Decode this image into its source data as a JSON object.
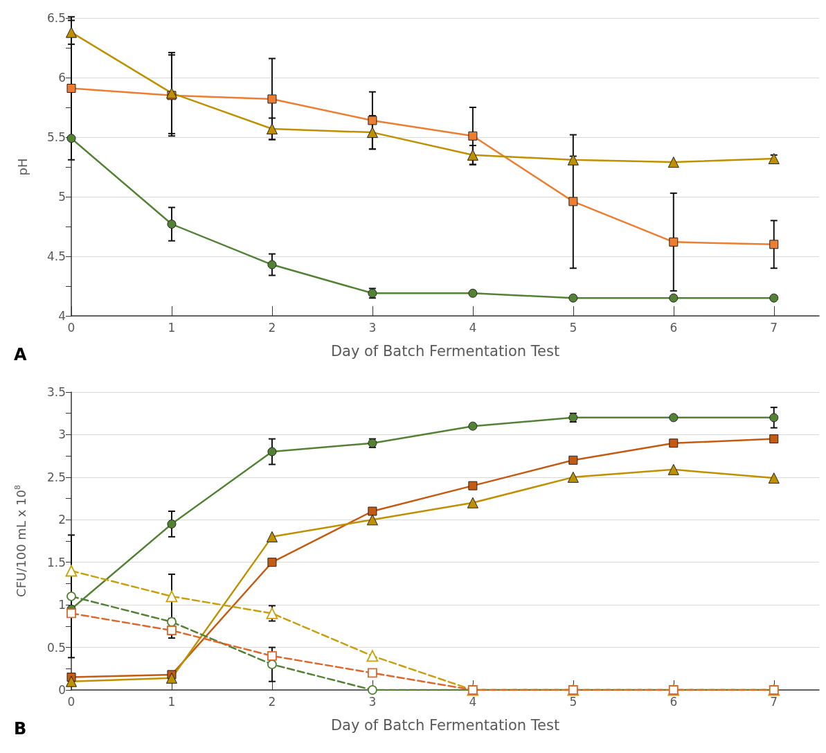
{
  "chart_data": [
    {
      "type": "line",
      "xlabel": "Day of Batch Fermentation Test",
      "ylabel": "pH",
      "annotations": [
        "A"
      ],
      "x": [
        0,
        1,
        2,
        3,
        4,
        5,
        6,
        7
      ],
      "xlim": [
        0,
        7.45
      ],
      "xticks": [
        0,
        1,
        2,
        3,
        4,
        5,
        6,
        7
      ],
      "ylim": [
        4,
        6.5
      ],
      "yticks": [
        4,
        4.5,
        5,
        5.5,
        6,
        6.5
      ],
      "grid": "y",
      "series": [
        {
          "color": "#ed7d31",
          "marker": "square",
          "line_style": "solid",
          "values": [
            5.91,
            5.85,
            5.82,
            5.64,
            5.51,
            4.96,
            4.62,
            4.6
          ],
          "errors": [
            0.6,
            0.34,
            0.34,
            0.24,
            0.24,
            0.56,
            0.41,
            0.2
          ]
        },
        {
          "color": "#bf9000",
          "marker": "triangle",
          "line_style": "solid",
          "values": [
            6.38,
            5.87,
            5.57,
            5.54,
            5.35,
            5.31,
            5.29,
            5.32
          ],
          "errors": [
            0.1,
            0.34,
            0.09,
            0.14,
            0.08,
            0.03,
            null,
            0.03
          ]
        },
        {
          "color": "#548235",
          "marker": "circle",
          "line_style": "solid",
          "values": [
            5.49,
            4.77,
            4.43,
            4.19,
            4.19,
            4.15,
            4.15,
            4.15
          ],
          "errors": [
            null,
            0.14,
            0.09,
            0.04,
            null,
            null,
            null,
            null
          ]
        }
      ]
    },
    {
      "type": "line",
      "xlabel": "Day of Batch Fermentation Test",
      "ylabel": "CFU/100 mL x 10$^{8}$",
      "annotations": [
        "B"
      ],
      "x": [
        0,
        1,
        2,
        3,
        4,
        5,
        6,
        7
      ],
      "xlim": [
        0,
        7.45
      ],
      "xticks": [
        0,
        1,
        2,
        3,
        4,
        5,
        6,
        7
      ],
      "ylim": [
        0,
        3.5
      ],
      "yticks": [
        0,
        0.5,
        1,
        1.5,
        2,
        2.5,
        3,
        3.5
      ],
      "grid": "y",
      "series": [
        {
          "color": "#548235",
          "marker": "circle",
          "line_style": "solid",
          "values": [
            0.95,
            1.95,
            2.8,
            2.9,
            3.1,
            3.2,
            3.2,
            3.2
          ],
          "errors": [
            null,
            0.15,
            0.15,
            0.05,
            null,
            0.05,
            null,
            0.12
          ]
        },
        {
          "color": "#c55a11",
          "marker": "square",
          "line_style": "solid",
          "values": [
            0.15,
            0.18,
            1.5,
            2.1,
            2.4,
            2.7,
            2.9,
            2.95
          ]
        },
        {
          "color": "#bf9000",
          "marker": "triangle",
          "line_style": "solid",
          "values": [
            0.1,
            0.14,
            1.8,
            2.0,
            2.2,
            2.5,
            2.59,
            2.49
          ]
        },
        {
          "color": "#c9a00c",
          "marker": "triangle",
          "line_style": "dashed",
          "values": [
            1.4,
            1.1,
            0.9,
            0.4,
            0,
            0,
            0,
            0
          ],
          "errors": [
            null,
            0.26,
            0.09,
            null,
            null,
            null,
            null,
            null
          ]
        },
        {
          "color": "#548235",
          "marker": "circle",
          "line_style": "dashed",
          "values": [
            1.1,
            0.8,
            0.3,
            0,
            0,
            0,
            0,
            0
          ],
          "errors": [
            0.72,
            null,
            0.2,
            null,
            null,
            null,
            null,
            null
          ]
        },
        {
          "color": "#e0662a",
          "marker": "square",
          "line_style": "dashed",
          "values": [
            0.9,
            0.7,
            0.4,
            0.2,
            0,
            0,
            0,
            0
          ],
          "errors": [
            null,
            0.09,
            null,
            null,
            null,
            null,
            null,
            null
          ]
        }
      ]
    }
  ]
}
